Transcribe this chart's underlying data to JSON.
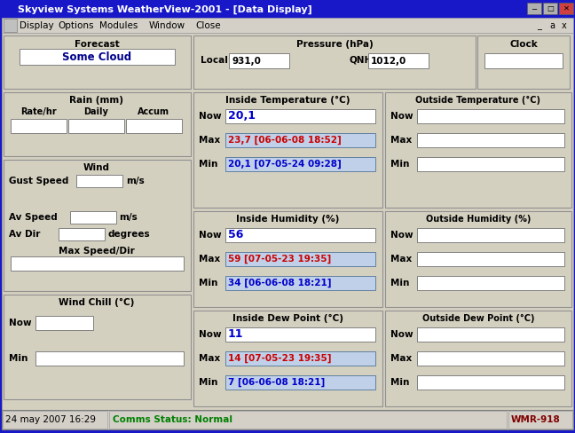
{
  "title_bar": "Skyview Systems WeatherView-2001 - [Data Display]",
  "menu_items": [
    "Display",
    "Options",
    "Modules",
    "Window",
    "Close"
  ],
  "status_left": "24 may 2007 16:29",
  "status_middle": "Comms Status: Normal",
  "status_right": "WMR-918",
  "bg_color": "#d4d0c0",
  "title_bg": "#1818c8",
  "box_bg": "#ffffff",
  "section_bg": "#d4d0c0",
  "black": "#000000",
  "blue_text": "#0000cc",
  "green_text": "#008000",
  "dark_red": "#800000",
  "highlight_bg": "#c0d0e8",
  "forecast_text": "Some Cloud",
  "pressure_local": "931,0",
  "pressure_qnh": "1012,0",
  "inside_temp_now": "20,1",
  "inside_temp_max": "23,7 [06-06-08 18:52]",
  "inside_temp_min": "20,1 [07-05-24 09:28]",
  "inside_hum_now": "56",
  "inside_hum_max": "59 [07-05-23 19:35]",
  "inside_hum_min": "34 [06-06-08 18:21]",
  "inside_dew_now": "11",
  "inside_dew_max": "14 [07-05-23 19:35]",
  "inside_dew_min": "7 [06-06-08 18:21]"
}
